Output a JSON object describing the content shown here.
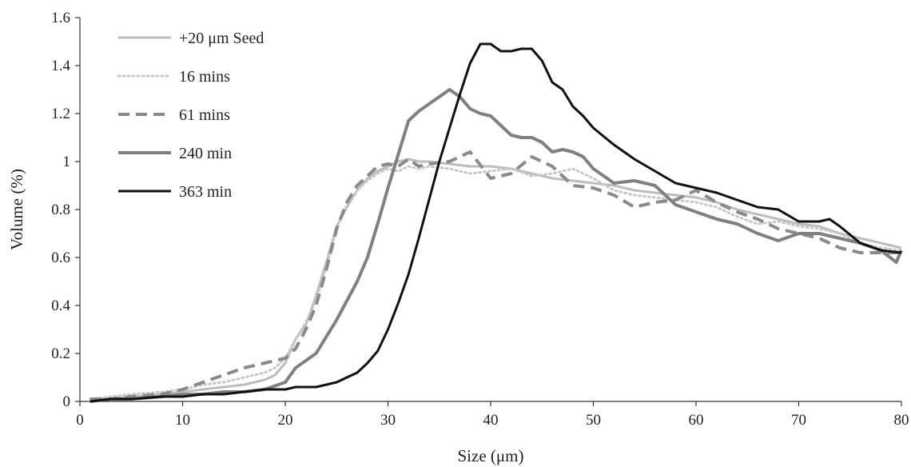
{
  "chart_data": {
    "type": "line",
    "xlabel": "Size (μm)",
    "ylabel": "Volume (%)",
    "xlim": [
      0,
      80
    ],
    "ylim": [
      0,
      1.6
    ],
    "x_ticks": [
      "0",
      "10",
      "20",
      "30",
      "40",
      "50",
      "60",
      "70",
      "80"
    ],
    "y_ticks": [
      "0",
      "0.2",
      "0.4",
      "0.6",
      "0.8",
      "1",
      "1.2",
      "1.4",
      "1.6"
    ],
    "grid": false,
    "legend_position": "top-left",
    "series": [
      {
        "name": "+20 μm Seed",
        "color": "#bdbdbd",
        "dash": "solid",
        "width": 3,
        "x": [
          1,
          3,
          5,
          8,
          10,
          12,
          14,
          16,
          18,
          19,
          20,
          21,
          22,
          23,
          24,
          25,
          26,
          27,
          28,
          29,
          30,
          31,
          32,
          33,
          34,
          36,
          38,
          40,
          42,
          44,
          46,
          48,
          50,
          52,
          54,
          56,
          58,
          60,
          62,
          64,
          66,
          68,
          70,
          72,
          74,
          76,
          78,
          80
        ],
        "y": [
          0.01,
          0.01,
          0.02,
          0.03,
          0.04,
          0.05,
          0.06,
          0.07,
          0.09,
          0.11,
          0.16,
          0.26,
          0.32,
          0.44,
          0.58,
          0.73,
          0.81,
          0.88,
          0.93,
          0.96,
          0.98,
          1.0,
          1.01,
          1.0,
          1.0,
          0.99,
          0.98,
          0.98,
          0.97,
          0.95,
          0.93,
          0.92,
          0.91,
          0.9,
          0.88,
          0.87,
          0.86,
          0.85,
          0.83,
          0.8,
          0.78,
          0.76,
          0.74,
          0.73,
          0.7,
          0.68,
          0.66,
          0.64
        ]
      },
      {
        "name": "16 mins",
        "color": "#c8c8c8",
        "dash": "dotted",
        "width": 3,
        "x": [
          1,
          3,
          5,
          8,
          10,
          12,
          14,
          16,
          18,
          19,
          20,
          21,
          22,
          23,
          24,
          25,
          26,
          27,
          28,
          29,
          30,
          31,
          32,
          33,
          34,
          36,
          38,
          40,
          42,
          44,
          46,
          48,
          50,
          52,
          54,
          56,
          58,
          60,
          62,
          64,
          66,
          68,
          70,
          72,
          74,
          76,
          78,
          80
        ],
        "y": [
          0.01,
          0.02,
          0.03,
          0.04,
          0.05,
          0.07,
          0.08,
          0.1,
          0.12,
          0.14,
          0.18,
          0.26,
          0.33,
          0.42,
          0.56,
          0.72,
          0.82,
          0.88,
          0.92,
          0.95,
          0.97,
          0.96,
          0.98,
          0.97,
          0.98,
          0.97,
          0.95,
          0.96,
          0.97,
          0.94,
          0.95,
          0.97,
          0.93,
          0.88,
          0.86,
          0.85,
          0.84,
          0.83,
          0.81,
          0.77,
          0.74,
          0.75,
          0.73,
          0.72,
          0.7,
          0.66,
          0.64,
          0.63
        ]
      },
      {
        "name": "61 mins",
        "color": "#8a8a8a",
        "dash": "dashed",
        "width": 4,
        "x": [
          1,
          3,
          5,
          8,
          10,
          12,
          14,
          16,
          18,
          19,
          20,
          21,
          22,
          23,
          24,
          25,
          26,
          27,
          28,
          29,
          30,
          31,
          32,
          33,
          34,
          36,
          37,
          38,
          40,
          42,
          44,
          46,
          48,
          50,
          52,
          54,
          56,
          58,
          60,
          62,
          64,
          66,
          68,
          70,
          72,
          74,
          76,
          78,
          80
        ],
        "y": [
          0.01,
          0.01,
          0.02,
          0.03,
          0.05,
          0.08,
          0.11,
          0.14,
          0.16,
          0.17,
          0.18,
          0.22,
          0.3,
          0.4,
          0.55,
          0.72,
          0.83,
          0.9,
          0.94,
          0.98,
          0.99,
          0.98,
          1.01,
          0.98,
          0.99,
          1.0,
          1.02,
          1.04,
          0.93,
          0.95,
          1.02,
          0.98,
          0.9,
          0.89,
          0.86,
          0.81,
          0.83,
          0.84,
          0.88,
          0.83,
          0.79,
          0.76,
          0.72,
          0.7,
          0.68,
          0.64,
          0.62,
          0.62,
          0.62
        ]
      },
      {
        "name": "240 min",
        "color": "#808080",
        "dash": "solid",
        "width": 4,
        "x": [
          1,
          3,
          5,
          8,
          10,
          12,
          14,
          16,
          18,
          20,
          21,
          22,
          23,
          24,
          25,
          26,
          27,
          28,
          29,
          30,
          31,
          32,
          33,
          34,
          35,
          36,
          37,
          38,
          39,
          40,
          41,
          42,
          43,
          44,
          45,
          46,
          47,
          48,
          49,
          50,
          52,
          54,
          56,
          58,
          60,
          62,
          64,
          66,
          68,
          70,
          72,
          74,
          76,
          78,
          79.5,
          80
        ],
        "y": [
          0.0,
          0.01,
          0.01,
          0.02,
          0.03,
          0.03,
          0.04,
          0.04,
          0.05,
          0.08,
          0.14,
          0.17,
          0.2,
          0.27,
          0.34,
          0.42,
          0.5,
          0.6,
          0.74,
          0.89,
          1.03,
          1.17,
          1.21,
          1.24,
          1.27,
          1.3,
          1.27,
          1.22,
          1.2,
          1.19,
          1.15,
          1.11,
          1.1,
          1.1,
          1.08,
          1.04,
          1.05,
          1.04,
          1.02,
          0.97,
          0.91,
          0.92,
          0.9,
          0.82,
          0.79,
          0.76,
          0.74,
          0.7,
          0.67,
          0.7,
          0.7,
          0.68,
          0.66,
          0.63,
          0.58,
          0.63
        ]
      },
      {
        "name": "363 min",
        "color": "#111111",
        "dash": "solid",
        "width": 3,
        "x": [
          1,
          3,
          5,
          8,
          10,
          12,
          14,
          16,
          18,
          20,
          21,
          22,
          23,
          24,
          25,
          26,
          27,
          28,
          29,
          30,
          31,
          32,
          33,
          34,
          35,
          36,
          37,
          38,
          39,
          40,
          41,
          42,
          43,
          44,
          45,
          46,
          47,
          48,
          49,
          50,
          52,
          54,
          56,
          58,
          60,
          62,
          64,
          66,
          68,
          70,
          72,
          73,
          74,
          76,
          78,
          80
        ],
        "y": [
          0.0,
          0.01,
          0.01,
          0.02,
          0.02,
          0.03,
          0.03,
          0.04,
          0.05,
          0.05,
          0.06,
          0.06,
          0.06,
          0.07,
          0.08,
          0.1,
          0.12,
          0.16,
          0.21,
          0.3,
          0.41,
          0.53,
          0.68,
          0.84,
          1.0,
          1.14,
          1.28,
          1.41,
          1.49,
          1.49,
          1.46,
          1.46,
          1.47,
          1.47,
          1.42,
          1.33,
          1.3,
          1.23,
          1.19,
          1.14,
          1.07,
          1.01,
          0.96,
          0.91,
          0.89,
          0.87,
          0.84,
          0.81,
          0.8,
          0.75,
          0.75,
          0.76,
          0.73,
          0.66,
          0.63,
          0.62
        ]
      }
    ]
  }
}
